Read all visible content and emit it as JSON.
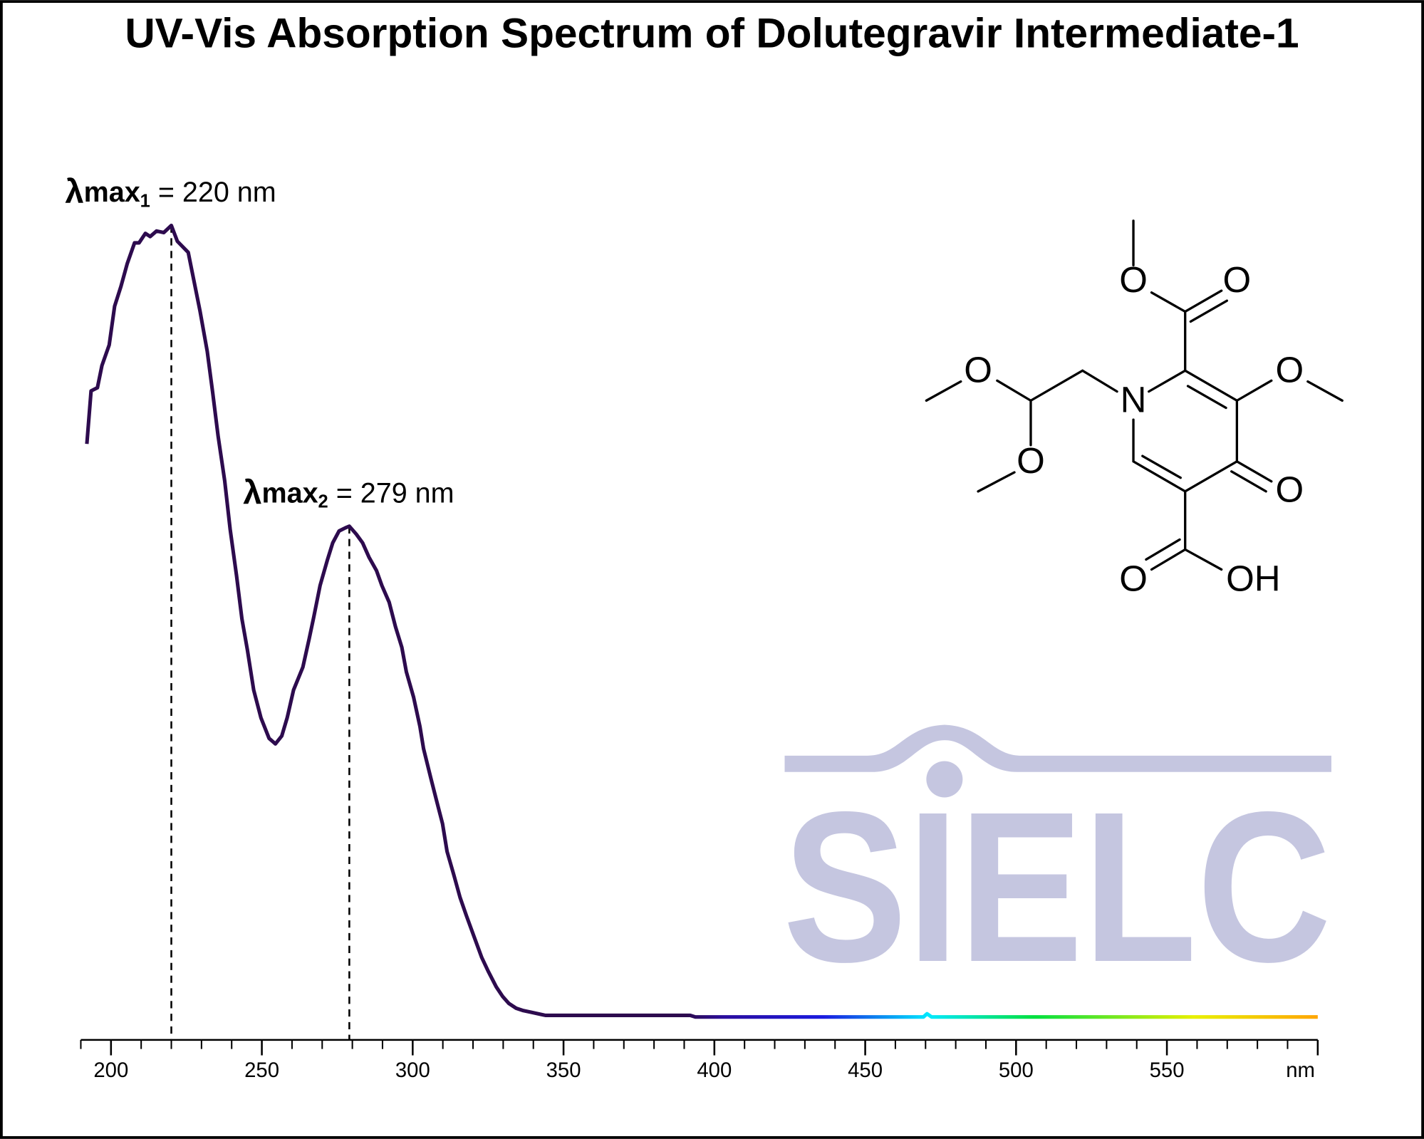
{
  "chart_data": {
    "type": "line",
    "title": "UV-Vis Absorption Spectrum of Dolutegravir Intermediate-1",
    "x": [
      192,
      193.4,
      195.5,
      197,
      199.4,
      201.2,
      203.3,
      205.4,
      207.8,
      209.3,
      211.4,
      213,
      215.1,
      217.5,
      220,
      222,
      225.6,
      229.5,
      231.9,
      233.7,
      235.5,
      237.7,
      239.5,
      241.6,
      243.4,
      245.2,
      247.3,
      249.7,
      252.4,
      254.5,
      256.6,
      258.4,
      260.5,
      263.6,
      265.7,
      267.2,
      269.3,
      271.7,
      273.5,
      275.6,
      277.7,
      279,
      281.3,
      283.4,
      285.5,
      288,
      289.8,
      292.2,
      294.3,
      296.4,
      297.9,
      300.3,
      302.4,
      303.6,
      306,
      307.8,
      309.9,
      311.4,
      313.6,
      315.7,
      317.8,
      320.2,
      322.9,
      325,
      327.7,
      329.8,
      331.9,
      334.3,
      336.7,
      339.2,
      344,
      392,
      393.7,
      469.3,
      470.5,
      472,
      600
    ],
    "series": [
      {
        "name": "Dolutegravir Intermediate-1",
        "color": "#2d0b4e",
        "values": [
          0.724,
          0.791,
          0.795,
          0.823,
          0.849,
          0.898,
          0.923,
          0.952,
          0.978,
          0.978,
          0.99,
          0.986,
          0.993,
          0.991,
          1.0,
          0.98,
          0.966,
          0.892,
          0.841,
          0.789,
          0.734,
          0.677,
          0.616,
          0.558,
          0.503,
          0.464,
          0.413,
          0.378,
          0.352,
          0.345,
          0.355,
          0.378,
          0.413,
          0.442,
          0.478,
          0.505,
          0.545,
          0.577,
          0.599,
          0.614,
          0.618,
          0.62,
          0.61,
          0.599,
          0.581,
          0.564,
          0.545,
          0.524,
          0.493,
          0.467,
          0.436,
          0.404,
          0.367,
          0.339,
          0.302,
          0.275,
          0.244,
          0.209,
          0.18,
          0.151,
          0.128,
          0.103,
          0.075,
          0.058,
          0.038,
          0.026,
          0.017,
          0.011,
          0.008,
          0.006,
          0.002,
          0.002,
          0,
          0,
          0.004,
          0,
          0
        ]
      }
    ],
    "xlim": [
      190,
      600
    ],
    "ylim": [
      -0.029,
      1.1
    ],
    "xticks": [
      200,
      250,
      300,
      350,
      400,
      450,
      500,
      550,
      {
        "value": 600,
        "label": "nm"
      }
    ],
    "xticks_minor": [
      190,
      210,
      220,
      230,
      240,
      260,
      270,
      280,
      290,
      310,
      320,
      330,
      340,
      360,
      370,
      380,
      390,
      410,
      420,
      430,
      440,
      460,
      470,
      480,
      490,
      510,
      520,
      530,
      540,
      560,
      570,
      580,
      590
    ],
    "annotations": [
      {
        "symbol": "λ",
        "label": "max",
        "index": "1",
        "text": " = 220 nm",
        "x": 220,
        "y": 1.0
      },
      {
        "symbol": "λ",
        "label": "max",
        "index": "2",
        "text": " = 279 nm",
        "x": 279,
        "y": 0.62
      }
    ]
  },
  "structure": {
    "atoms": [
      "O",
      "O",
      "O",
      "N",
      "O",
      "O",
      "O",
      "O",
      "OH"
    ]
  },
  "watermark": "SIELC"
}
